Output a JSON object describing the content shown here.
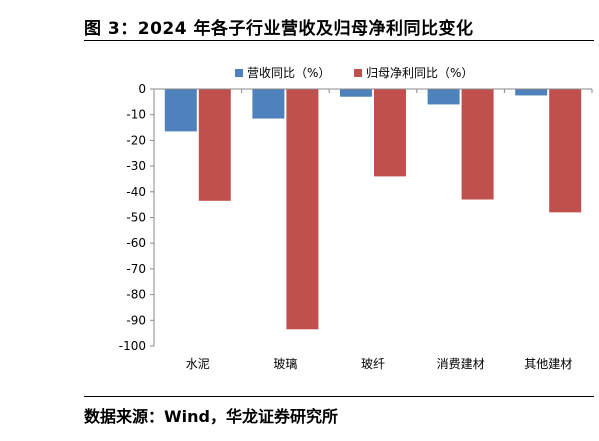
{
  "figure": {
    "title": "图 3：2024 年各子行业营收及归母净利同比变化",
    "source": "数据来源：Wind，华龙证券研究所"
  },
  "chart_data": {
    "type": "bar",
    "categories": [
      "水泥",
      "玻璃",
      "玻纤",
      "消费建材",
      "其他建材"
    ],
    "series": [
      {
        "name": "营收同比（%）",
        "color": "#4f81bd",
        "values": [
          -16.5,
          -11.5,
          -3,
          -6,
          -2.5
        ]
      },
      {
        "name": "归母净利同比（%）",
        "color": "#c0504d",
        "values": [
          -43.5,
          -93.5,
          -34,
          -43,
          -48
        ]
      }
    ],
    "ylim": [
      -100,
      0
    ],
    "yticks": [
      0,
      -10,
      -20,
      -30,
      -40,
      -50,
      -60,
      -70,
      -80,
      -90,
      -100
    ],
    "legend": "top",
    "grid": false
  }
}
